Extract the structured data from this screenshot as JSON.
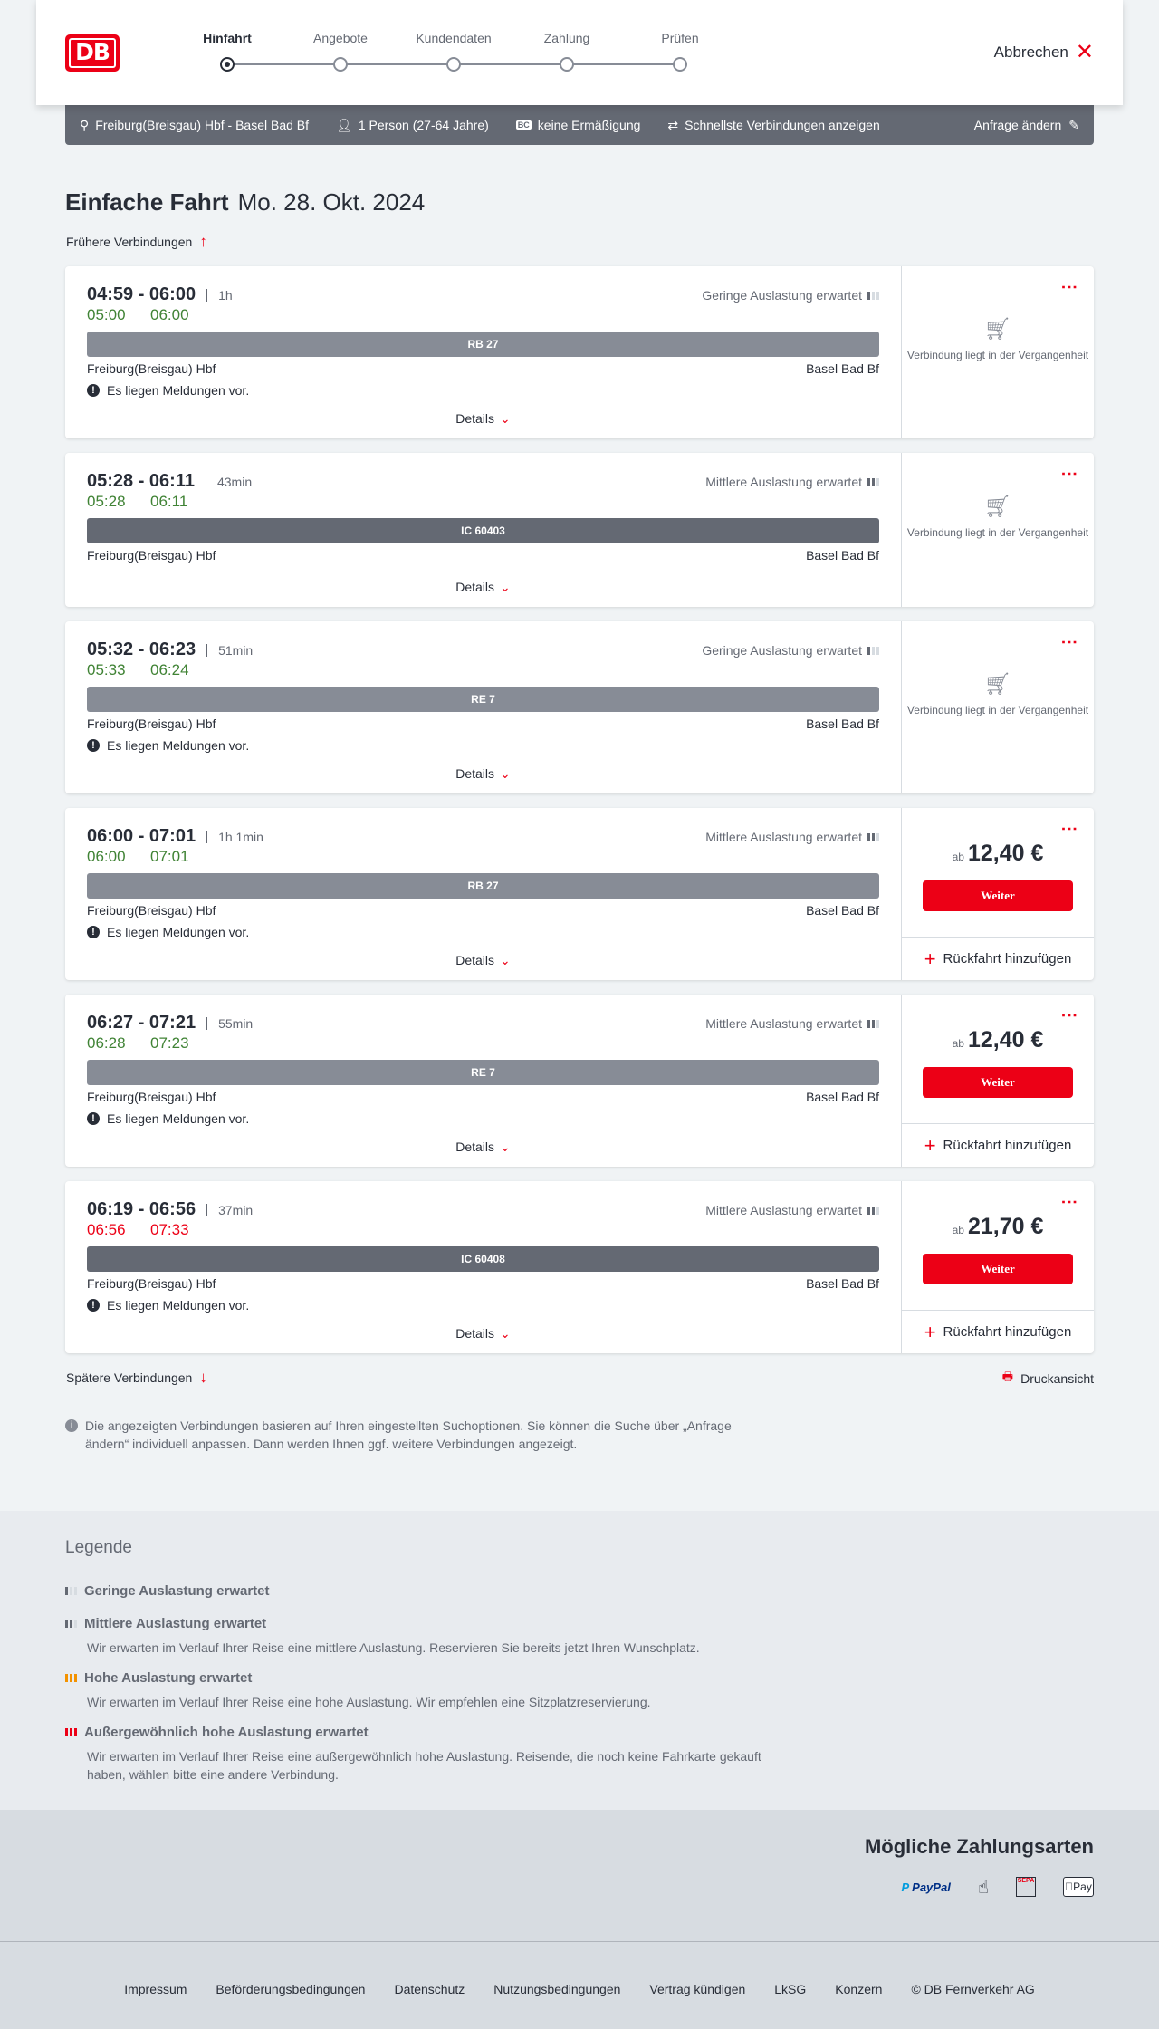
{
  "header": {
    "logo": "DB",
    "steps": [
      "Hinfahrt",
      "Angebote",
      "Kundendaten",
      "Zahlung",
      "Prüfen"
    ],
    "active_step": 0,
    "cancel": "Abbrechen"
  },
  "infobar": {
    "route": "Freiburg(Breisgau) Hbf - Basel Bad Bf",
    "persons": "1 Person (27-64 Jahre)",
    "discount": "keine Ermäßigung",
    "fastest": "Schnellste Verbindungen anzeigen",
    "change": "Anfrage ändern"
  },
  "title": {
    "type": "Einfache Fahrt",
    "date": "Mo. 28. Okt. 2024"
  },
  "earlier": "Frühere Verbindungen",
  "later": "Spätere Verbindungen",
  "print": "Druckansicht",
  "details_label": "Details",
  "message_label": "Es liegen Meldungen vor.",
  "past_label": "Verbindung liegt in der Vergangenheit",
  "price_prefix": "ab",
  "continue_label": "Weiter",
  "return_label": "Rückfahrt hinzufügen",
  "colors": {
    "accent": "#ec0016",
    "ontime": "#408335",
    "regional": "#878c96",
    "ic": "#646973"
  },
  "connections": [
    {
      "times": "04:59 - 06:00",
      "duration": "1h",
      "rt_dep": "05:00",
      "rt_arr": "06:00",
      "rt_status": "ok",
      "load": "Geringe Auslastung erwartet",
      "load_level": 1,
      "train": "RB 27",
      "train_kind": "regional",
      "from": "Freiburg(Breisgau) Hbf",
      "to": "Basel Bad Bf",
      "messages": true,
      "past": true
    },
    {
      "times": "05:28 - 06:11",
      "duration": "43min",
      "rt_dep": "05:28",
      "rt_arr": "06:11",
      "rt_status": "ok",
      "load": "Mittlere Auslastung erwartet",
      "load_level": 2,
      "train": "IC 60403",
      "train_kind": "ic",
      "from": "Freiburg(Breisgau) Hbf",
      "to": "Basel Bad Bf",
      "messages": false,
      "past": true
    },
    {
      "times": "05:32 - 06:23",
      "duration": "51min",
      "rt_dep": "05:33",
      "rt_arr": "06:24",
      "rt_status": "ok",
      "load": "Geringe Auslastung erwartet",
      "load_level": 1,
      "train": "RE 7",
      "train_kind": "regional",
      "from": "Freiburg(Breisgau) Hbf",
      "to": "Basel Bad Bf",
      "messages": true,
      "past": true
    },
    {
      "times": "06:00 - 07:01",
      "duration": "1h 1min",
      "rt_dep": "06:00",
      "rt_arr": "07:01",
      "rt_status": "ok",
      "load": "Mittlere Auslastung erwartet",
      "load_level": 2,
      "train": "RB 27",
      "train_kind": "regional",
      "from": "Freiburg(Breisgau) Hbf",
      "to": "Basel Bad Bf",
      "messages": true,
      "past": false,
      "price": "12,40 €"
    },
    {
      "times": "06:27 - 07:21",
      "duration": "55min",
      "rt_dep": "06:28",
      "rt_arr": "07:23",
      "rt_status": "ok",
      "load": "Mittlere Auslastung erwartet",
      "load_level": 2,
      "train": "RE 7",
      "train_kind": "regional",
      "from": "Freiburg(Breisgau) Hbf",
      "to": "Basel Bad Bf",
      "messages": true,
      "past": false,
      "price": "12,40 €"
    },
    {
      "times": "06:19 - 06:56",
      "duration": "37min",
      "rt_dep": "06:56",
      "rt_arr": "07:33",
      "rt_status": "late",
      "load": "Mittlere Auslastung erwartet",
      "load_level": 2,
      "train": "IC 60408",
      "train_kind": "ic",
      "from": "Freiburg(Breisgau) Hbf",
      "to": "Basel Bad Bf",
      "messages": true,
      "past": false,
      "price": "21,70 €"
    }
  ],
  "note": "Die angezeigten Verbindungen basieren auf Ihren eingestellten Suchoptionen. Sie können die Suche über „Anfrage ändern“ individuell anpassen. Dann werden Ihnen ggf. weitere Verbindungen angezeigt.",
  "legend": {
    "title": "Legende",
    "items": [
      {
        "label": "Geringe Auslastung erwartet",
        "text": "",
        "icon": "occupancy-low-icon",
        "color": "#646973"
      },
      {
        "label": "Mittlere Auslastung erwartet",
        "text": "Wir erwarten im Verlauf Ihrer Reise eine mittlere Auslastung. Reservieren Sie bereits jetzt Ihren Wunschplatz.",
        "icon": "occupancy-medium-icon",
        "color": "#646973"
      },
      {
        "label": "Hohe Auslastung erwartet",
        "text": "Wir erwarten im Verlauf Ihrer Reise eine hohe Auslastung. Wir empfehlen eine Sitzplatzreservierung.",
        "icon": "occupancy-high-icon",
        "color": "#f39200"
      },
      {
        "label": "Außergewöhnlich hohe Auslastung erwartet",
        "text": "Wir erwarten im Verlauf Ihrer Reise eine außergewöhnlich hohe Auslastung. Reisende, die noch keine Fahrkarte gekauft haben, wählen bitte eine andere Verbindung.",
        "icon": "occupancy-exceptional-icon",
        "color": "#ec0016"
      }
    ]
  },
  "payment": {
    "title": "Mögliche Zahlungsarten",
    "methods": [
      "PayPal",
      "Pay"
    ]
  },
  "footer": [
    "Impressum",
    "Beförderungsbedingungen",
    "Datenschutz",
    "Nutzungsbedingungen",
    "Vertrag kündigen",
    "LkSG",
    "Konzern",
    "© DB Fernverkehr AG"
  ]
}
